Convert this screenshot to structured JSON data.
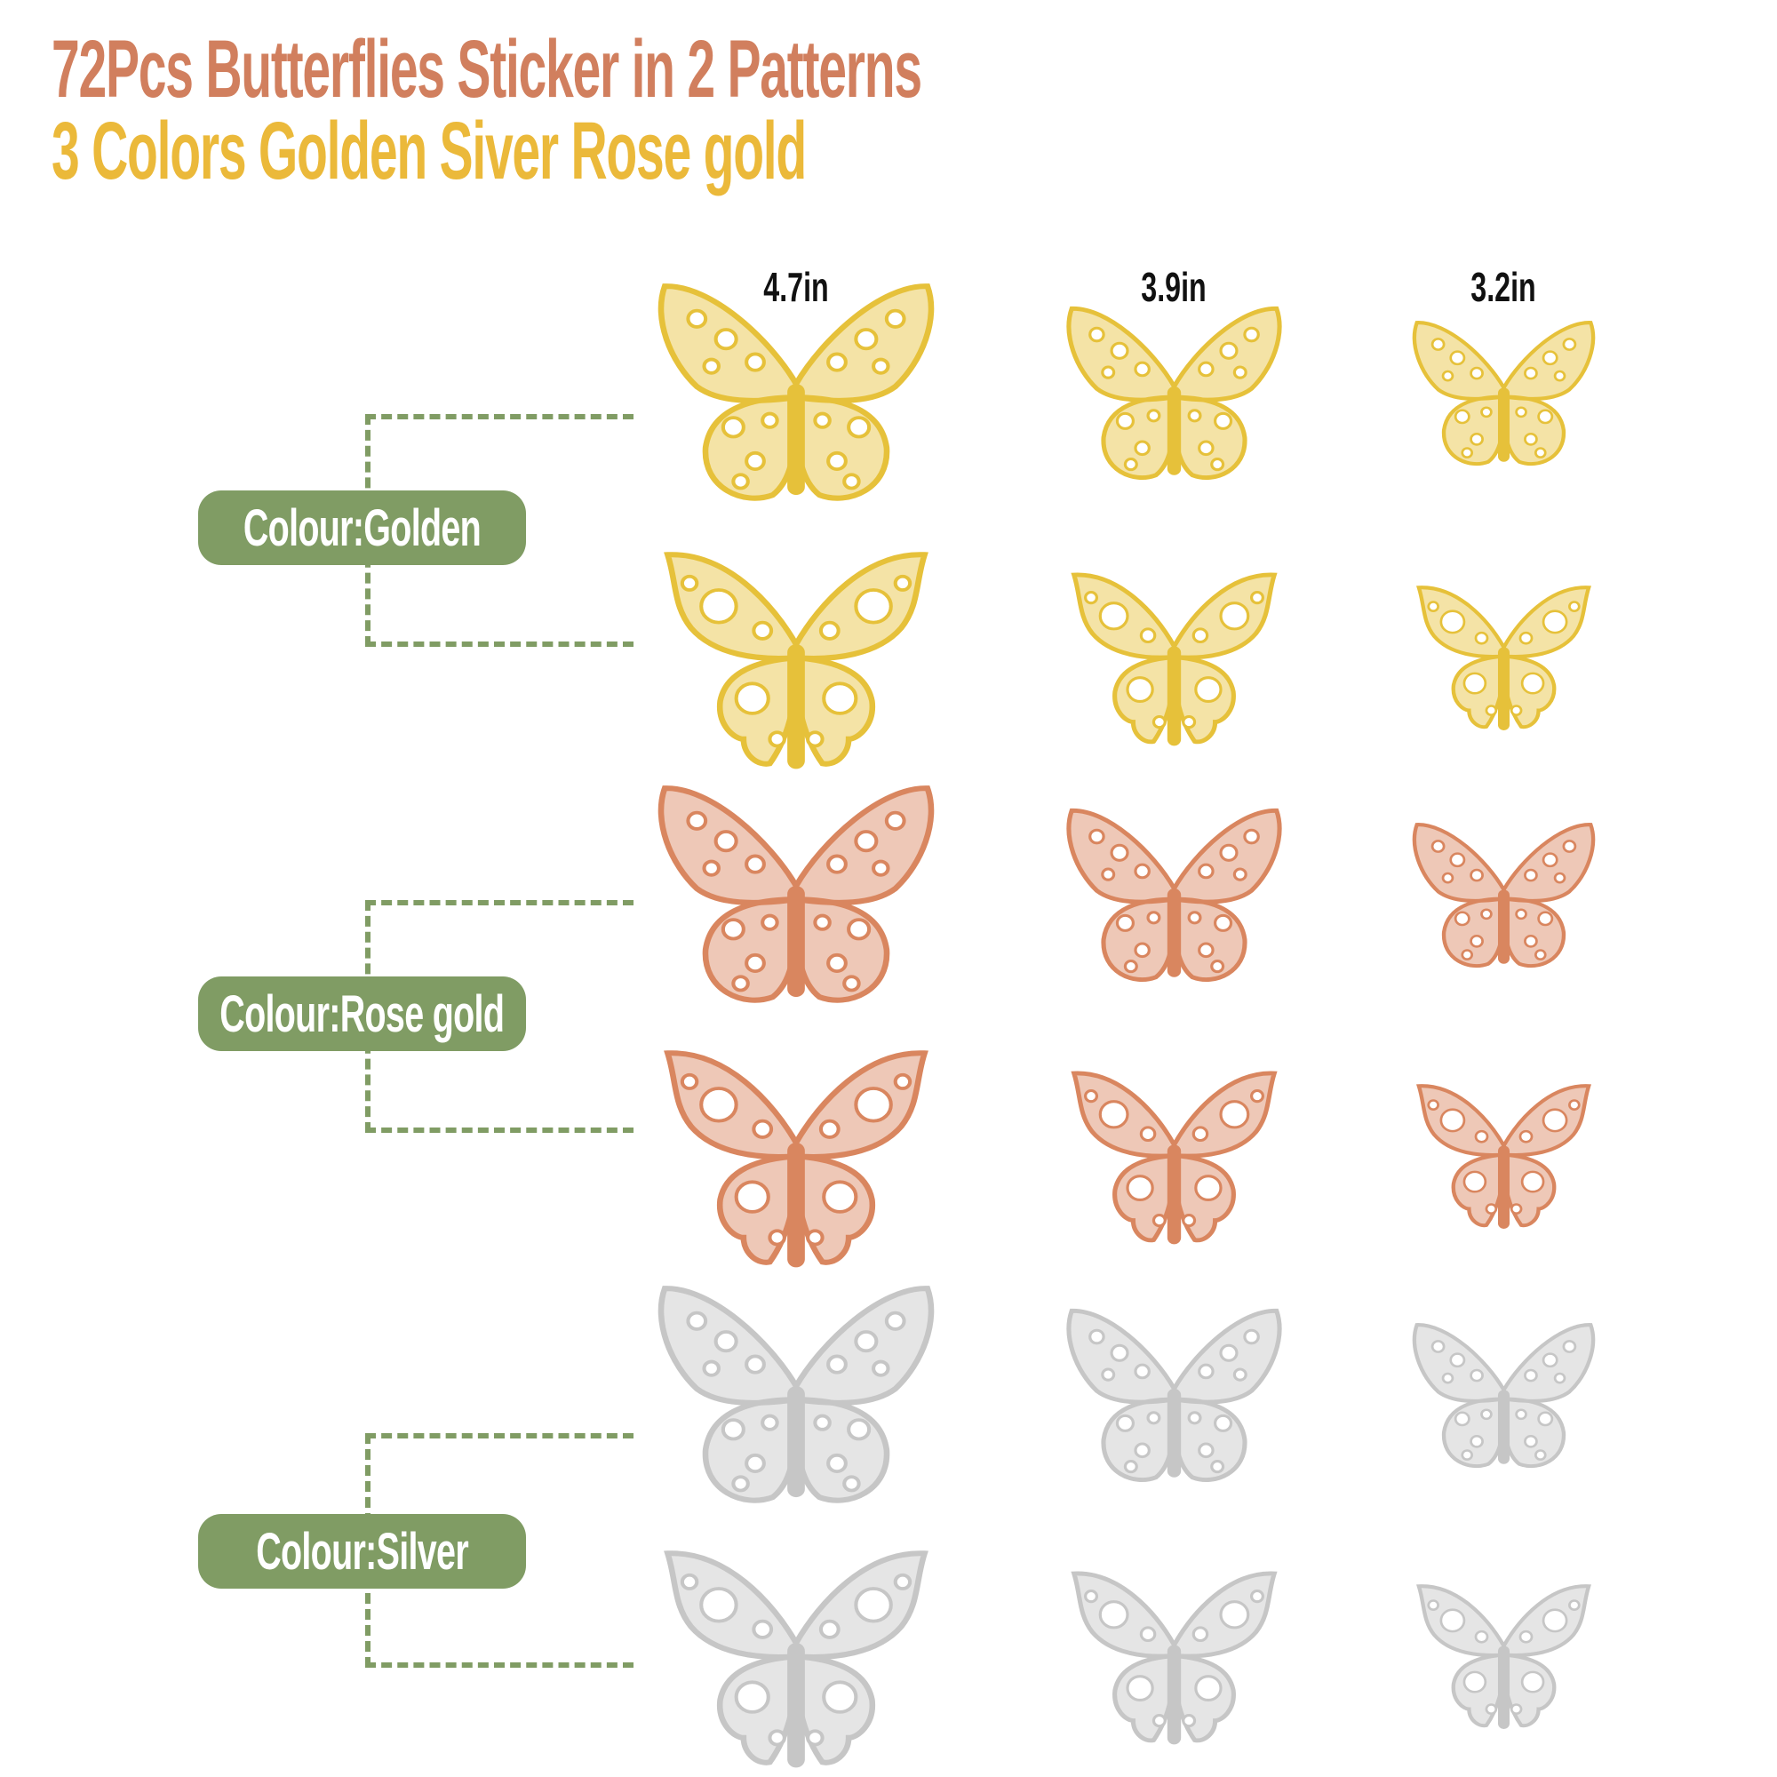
{
  "header": {
    "title": "72Pcs Butterflies Sticker in 2 Patterns",
    "subtitle": "3 Colors Golden Siver Rose gold"
  },
  "sizes": [
    "4.7in",
    "3.9in",
    "3.2in"
  ],
  "colour_labels": [
    "Colour:Golden",
    "Colour:Rose gold",
    "Colour:Silver"
  ],
  "colors": {
    "title": "#d17f5e",
    "subtitle": "#ebb93a",
    "label_bg": "#809c64",
    "golden": "#e6c13a",
    "rose_gold": "#d9865f",
    "silver": "#c6c6c6"
  },
  "butterfly_rows": [
    {
      "colour": "golden",
      "pattern": "floral-round"
    },
    {
      "colour": "golden",
      "pattern": "pointed-flower"
    },
    {
      "colour": "rose_gold",
      "pattern": "floral-round"
    },
    {
      "colour": "rose_gold",
      "pattern": "pointed-flower"
    },
    {
      "colour": "silver",
      "pattern": "floral-round"
    },
    {
      "colour": "silver",
      "pattern": "pointed-flower"
    }
  ]
}
